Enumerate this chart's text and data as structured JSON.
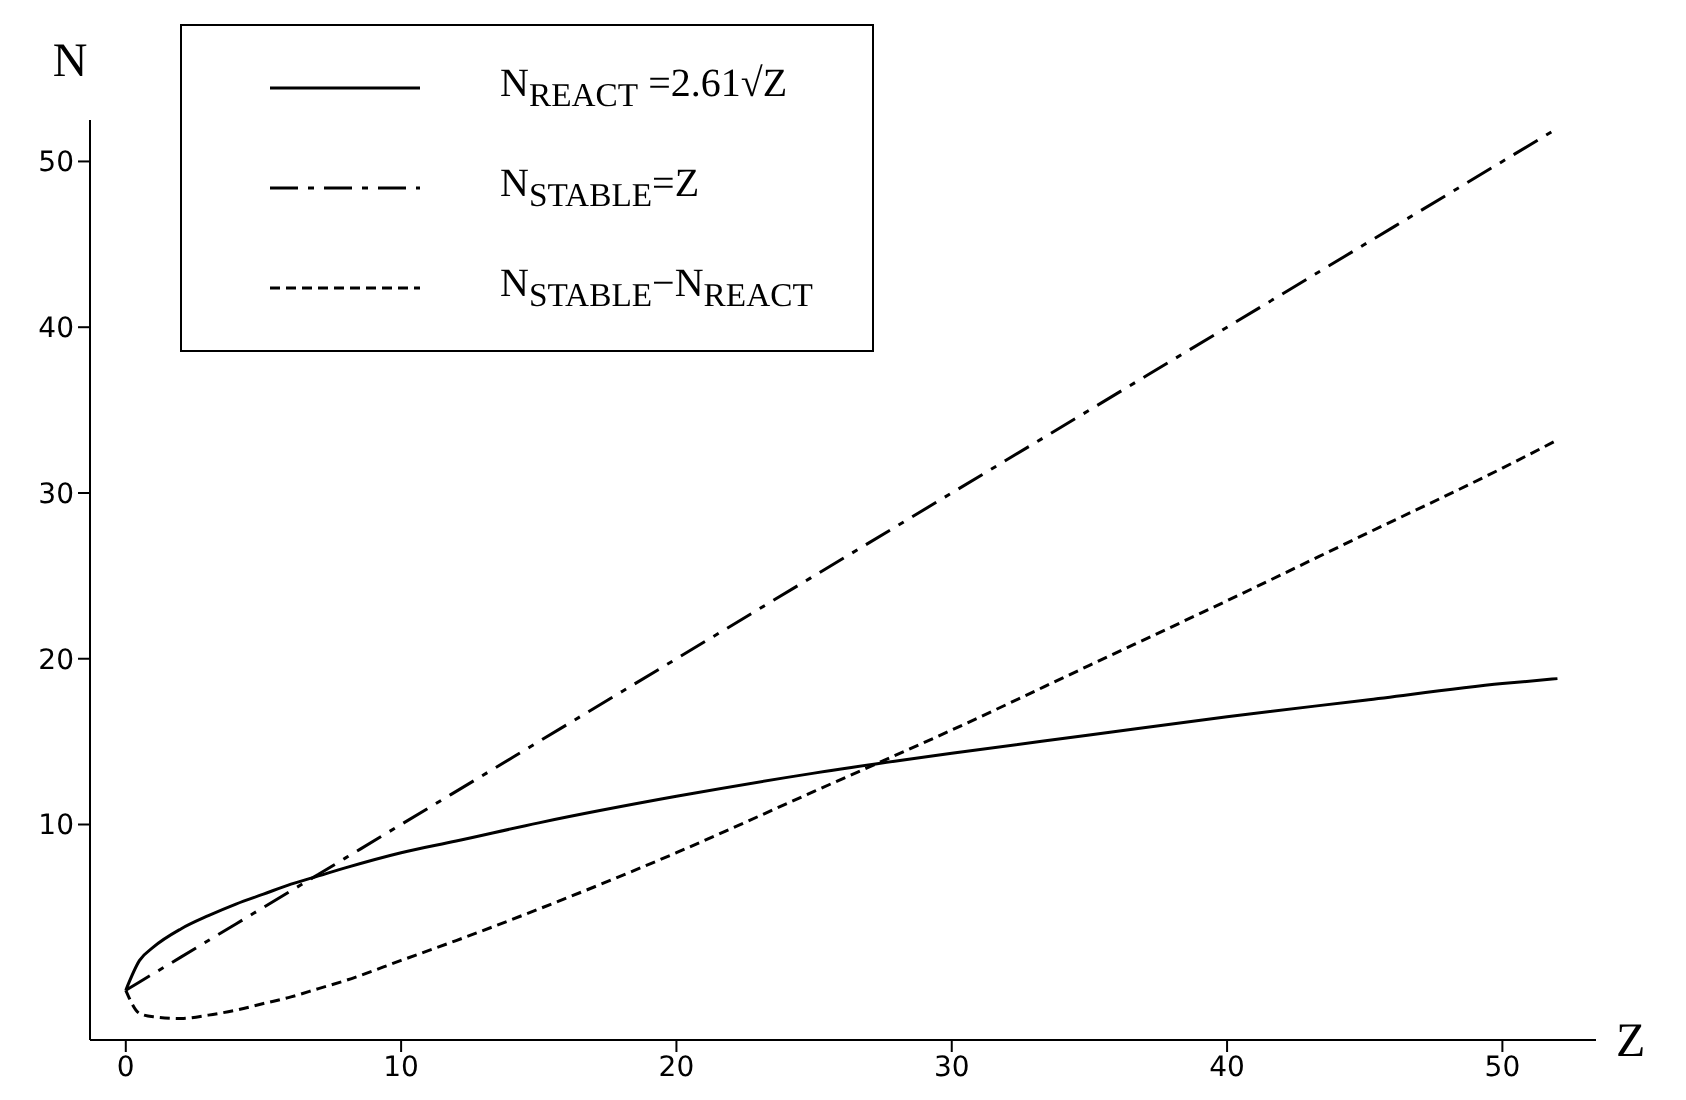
{
  "chart_data": {
    "type": "line",
    "xlabel": "Z",
    "ylabel": "N",
    "legend": "top left",
    "grid": false,
    "marker": "none",
    "x": [
      0,
      0.5,
      1,
      2,
      3,
      4,
      5,
      6,
      7,
      8,
      10,
      12,
      15,
      20,
      25,
      30,
      35,
      40,
      45,
      50,
      52
    ],
    "series": [
      {
        "name": "N$_{REACT}$ =2.61√Z",
        "color": "#000000",
        "line_style": "solid",
        "values": [
          0,
          1.8,
          2.6,
          3.7,
          4.5,
          5.2,
          5.8,
          6.4,
          6.9,
          7.4,
          8.3,
          9,
          10.1,
          11.7,
          13.1,
          14.3,
          15.4,
          16.5,
          17.5,
          18.5,
          18.8
        ]
      },
      {
        "name": "N$_{STABLE}$=Z",
        "color": "#000000",
        "line_style": "dashdot",
        "values": [
          0,
          0.5,
          1,
          2,
          3,
          4,
          5,
          6,
          7,
          8,
          10,
          12,
          15,
          20,
          25,
          30,
          35,
          40,
          45,
          50,
          52
        ]
      },
      {
        "name": "N$_{STABLE}$−N$_{REACT}$",
        "color": "#000000",
        "line_style": "dashed",
        "values": [
          0,
          -1.4,
          -1.6,
          -1.7,
          -1.5,
          -1.2,
          -0.8,
          -0.4,
          0.1,
          0.6,
          1.8,
          3,
          4.9,
          8.3,
          12,
          15.7,
          19.6,
          23.5,
          27.5,
          31.5,
          33.2
        ]
      }
    ],
    "xlim": [
      -1.3,
      53.4
    ],
    "xticks": [
      0,
      10,
      20,
      30,
      40,
      50
    ],
    "ylim": [
      -3,
      52.5
    ],
    "yticks": [
      10,
      20,
      30,
      40,
      50
    ]
  }
}
